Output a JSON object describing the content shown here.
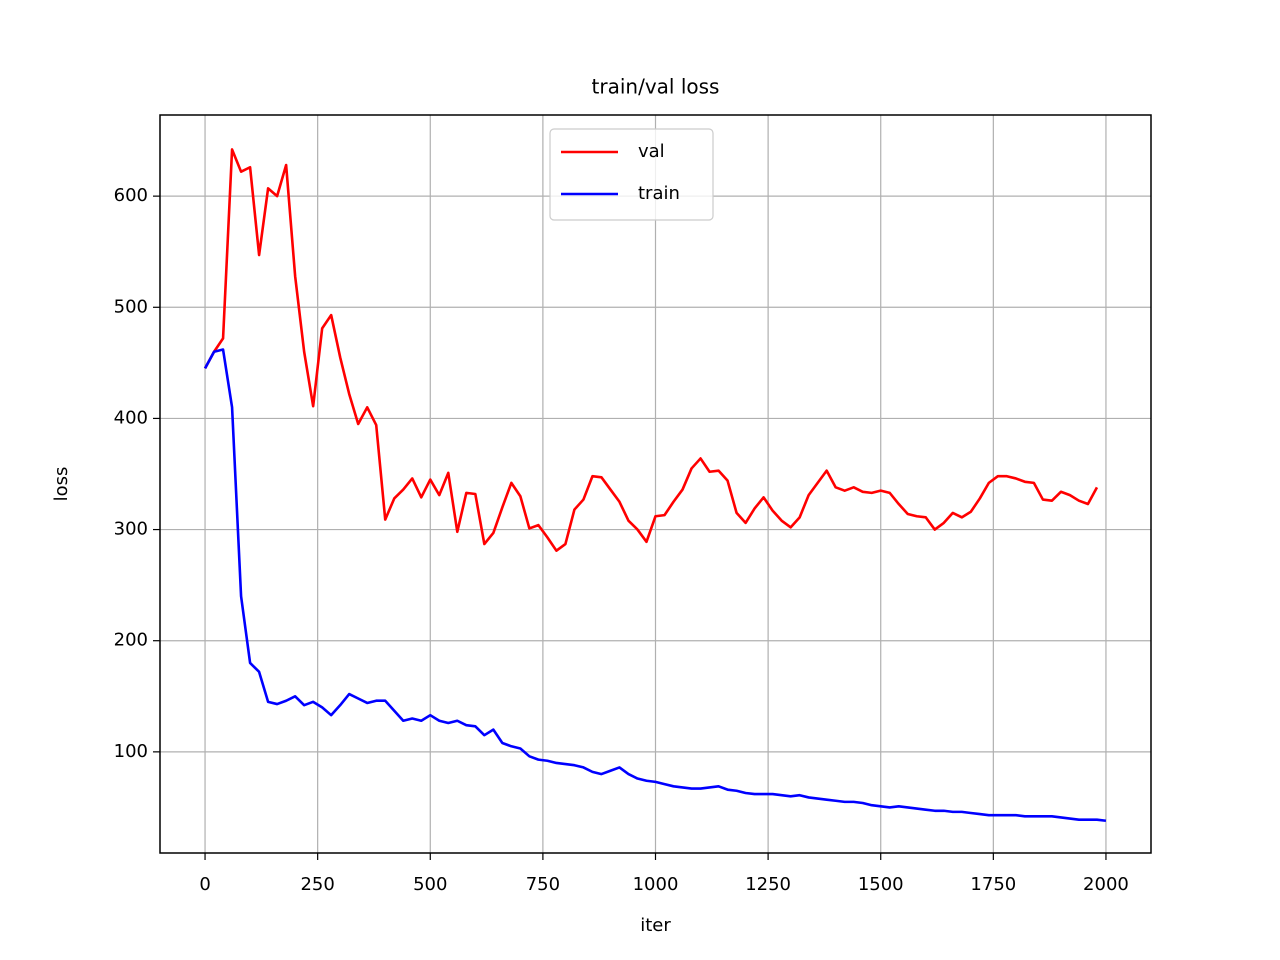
{
  "chart_data": {
    "type": "line",
    "title": "train/val loss",
    "x_label": "iter",
    "y_label": "loss",
    "xlim": [
      -100,
      2100
    ],
    "xticks": [
      0,
      250,
      500,
      750,
      1000,
      1250,
      1500,
      1750,
      2000
    ],
    "ylim": [
      9,
      673
    ],
    "yticks": [
      100,
      200,
      300,
      400,
      500,
      600
    ],
    "grid": true,
    "legend_position": "upper-center",
    "series": [
      {
        "name": "val",
        "color": "#ff0000",
        "x": [
          0,
          20,
          40,
          60,
          80,
          100,
          120,
          140,
          160,
          180,
          200,
          220,
          240,
          260,
          280,
          300,
          320,
          340,
          360,
          380,
          400,
          420,
          440,
          460,
          480,
          500,
          520,
          540,
          560,
          580,
          600,
          620,
          640,
          660,
          680,
          700,
          720,
          740,
          760,
          780,
          800,
          820,
          840,
          860,
          880,
          900,
          920,
          940,
          960,
          980,
          1000,
          1020,
          1040,
          1060,
          1080,
          1100,
          1120,
          1140,
          1160,
          1180,
          1200,
          1220,
          1240,
          1260,
          1280,
          1300,
          1320,
          1340,
          1360,
          1380,
          1400,
          1420,
          1440,
          1460,
          1480,
          1500,
          1520,
          1540,
          1560,
          1580,
          1600,
          1620,
          1640,
          1660,
          1680,
          1700,
          1720,
          1740,
          1760,
          1780,
          1800,
          1820,
          1840,
          1860,
          1880,
          1900,
          1920,
          1940,
          1960,
          1980
        ],
        "values": [
          445,
          460,
          472,
          642,
          622,
          626,
          547,
          607,
          600,
          628,
          528,
          460,
          411,
          481,
          493,
          455,
          422,
          395,
          410,
          394,
          309,
          328,
          336,
          346,
          329,
          345,
          331,
          351,
          298,
          333,
          332,
          287,
          297,
          320,
          342,
          330,
          301,
          304,
          293,
          281,
          287,
          318,
          327,
          348,
          347,
          336,
          325,
          308,
          300,
          289,
          312,
          313,
          325,
          336,
          355,
          364,
          352,
          353,
          344,
          315,
          306,
          319,
          329,
          317,
          308,
          302,
          311,
          331,
          342,
          353,
          338,
          335,
          338,
          334,
          333,
          335,
          333,
          323,
          314,
          312,
          311,
          300,
          306,
          315,
          311,
          316,
          328,
          342,
          348,
          348,
          346,
          343,
          342,
          327,
          326,
          334,
          331,
          326,
          323,
          338
        ]
      },
      {
        "name": "train",
        "color": "#0000ff",
        "x": [
          0,
          20,
          40,
          60,
          80,
          100,
          120,
          140,
          160,
          180,
          200,
          220,
          240,
          260,
          280,
          300,
          320,
          340,
          360,
          380,
          400,
          420,
          440,
          460,
          480,
          500,
          520,
          540,
          560,
          580,
          600,
          620,
          640,
          660,
          680,
          700,
          720,
          740,
          760,
          780,
          800,
          820,
          840,
          860,
          880,
          900,
          920,
          940,
          960,
          980,
          1000,
          1020,
          1040,
          1060,
          1080,
          1100,
          1120,
          1140,
          1160,
          1180,
          1200,
          1220,
          1240,
          1260,
          1280,
          1300,
          1320,
          1340,
          1360,
          1380,
          1400,
          1420,
          1440,
          1460,
          1480,
          1500,
          1520,
          1540,
          1560,
          1580,
          1600,
          1620,
          1640,
          1660,
          1680,
          1700,
          1720,
          1740,
          1760,
          1780,
          1800,
          1820,
          1840,
          1860,
          1880,
          1900,
          1920,
          1940,
          1960,
          1980,
          2000
        ],
        "values": [
          445,
          460,
          462,
          410,
          240,
          180,
          172,
          145,
          143,
          146,
          150,
          142,
          145,
          140,
          133,
          142,
          152,
          148,
          144,
          146,
          146,
          137,
          128,
          130,
          128,
          133,
          128,
          126,
          128,
          124,
          123,
          115,
          120,
          108,
          105,
          103,
          96,
          93,
          92,
          90,
          89,
          88,
          86,
          82,
          80,
          83,
          86,
          80,
          76,
          74,
          73,
          71,
          69,
          68,
          67,
          67,
          68,
          69,
          66,
          65,
          63,
          62,
          62,
          62,
          61,
          60,
          61,
          59,
          58,
          57,
          56,
          55,
          55,
          54,
          52,
          51,
          50,
          51,
          50,
          49,
          48,
          47,
          47,
          46,
          46,
          45,
          44,
          43,
          43,
          43,
          43,
          42,
          42,
          42,
          42,
          41,
          40,
          39,
          39,
          39,
          38
        ]
      }
    ]
  }
}
